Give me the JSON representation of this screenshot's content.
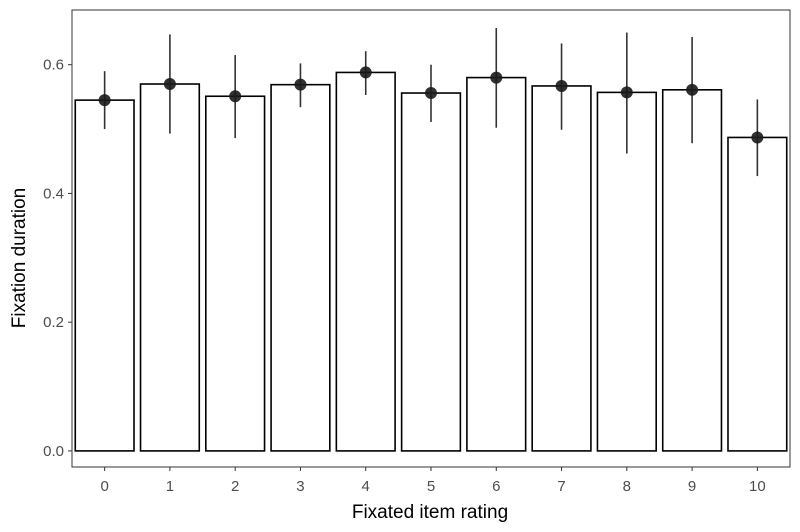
{
  "chart_data": {
    "type": "bar",
    "title": "",
    "xlabel": "Fixated item rating",
    "ylabel": "Fixation duration",
    "categories": [
      "0",
      "1",
      "2",
      "3",
      "4",
      "5",
      "6",
      "7",
      "8",
      "9",
      "10"
    ],
    "values": [
      0.545,
      0.57,
      0.551,
      0.569,
      0.588,
      0.556,
      0.58,
      0.567,
      0.557,
      0.561,
      0.487
    ],
    "points": [
      0.545,
      0.57,
      0.551,
      0.569,
      0.588,
      0.556,
      0.58,
      0.567,
      0.557,
      0.561,
      0.487
    ],
    "error_bars": {
      "lower": [
        0.5,
        0.493,
        0.486,
        0.534,
        0.553,
        0.511,
        0.502,
        0.499,
        0.462,
        0.478,
        0.427
      ],
      "upper": [
        0.59,
        0.647,
        0.615,
        0.602,
        0.621,
        0.6,
        0.657,
        0.633,
        0.65,
        0.643,
        0.546
      ]
    },
    "ylim": [
      -0.025,
      0.685
    ],
    "yticks": [
      0.0,
      0.2,
      0.4,
      0.6
    ],
    "ytick_labels": [
      "0.0",
      "0.2",
      "0.4",
      "0.6"
    ],
    "grid": false,
    "legend": "none",
    "colors": {
      "bar_fill": "#ffffff",
      "bar_stroke": "#000000",
      "point": "#1a1a1a",
      "errorbar": "#333333",
      "panel_border": "#333333"
    }
  }
}
